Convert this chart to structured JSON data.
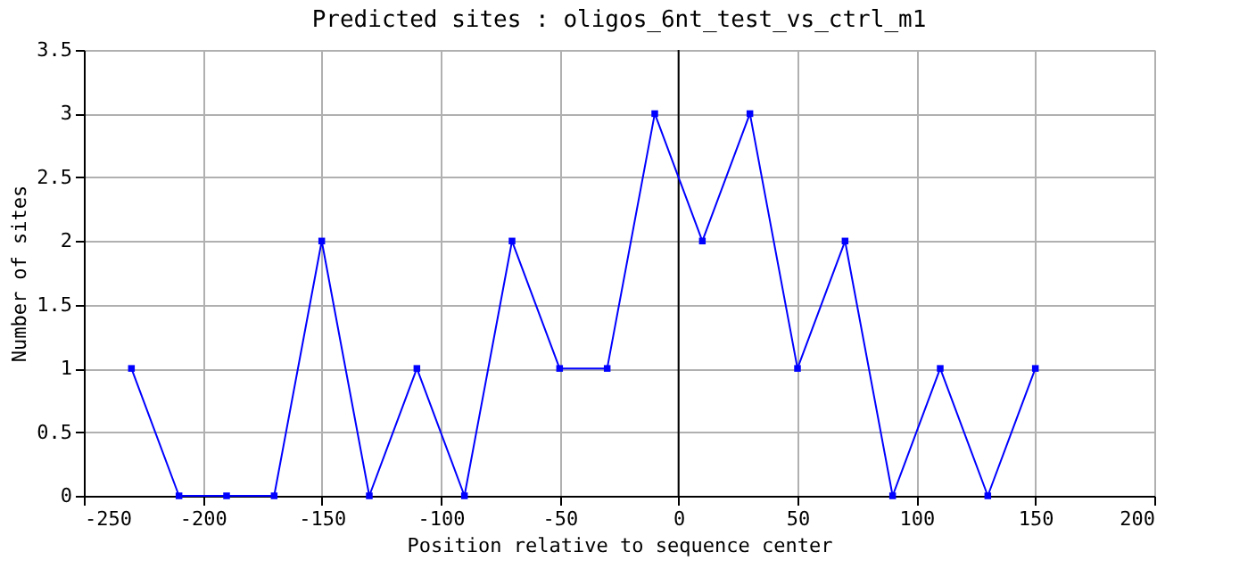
{
  "chart_data": {
    "type": "line",
    "title": "Predicted sites : oligos_6nt_test_vs_ctrl_m1",
    "xlabel": "Position relative to sequence center",
    "ylabel": "Number of sites",
    "x": [
      -230,
      -210,
      -190,
      -170,
      -150,
      -130,
      -110,
      -90,
      -70,
      -50,
      -30,
      -10,
      10,
      30,
      50,
      70,
      90,
      110,
      130,
      150
    ],
    "series": [
      {
        "color": "#0000ff",
        "values": [
          1,
          0,
          0,
          0,
          2,
          0,
          1,
          0,
          2,
          1,
          1,
          3,
          2,
          3,
          1,
          2,
          0,
          1,
          0,
          1
        ]
      }
    ],
    "xlim": [
      -250,
      200
    ],
    "xticks": [
      -250,
      -200,
      -150,
      -100,
      -50,
      0,
      50,
      100,
      150,
      200
    ],
    "ylim": [
      0,
      3.5
    ],
    "yticks": [
      0,
      0.5,
      1,
      1.5,
      2,
      2.5,
      3,
      3.5
    ],
    "ref_lines": [
      {
        "axis": "x",
        "value": 0,
        "color": "#000000"
      }
    ],
    "grid": true,
    "marker": "square",
    "line_style": "solid"
  }
}
